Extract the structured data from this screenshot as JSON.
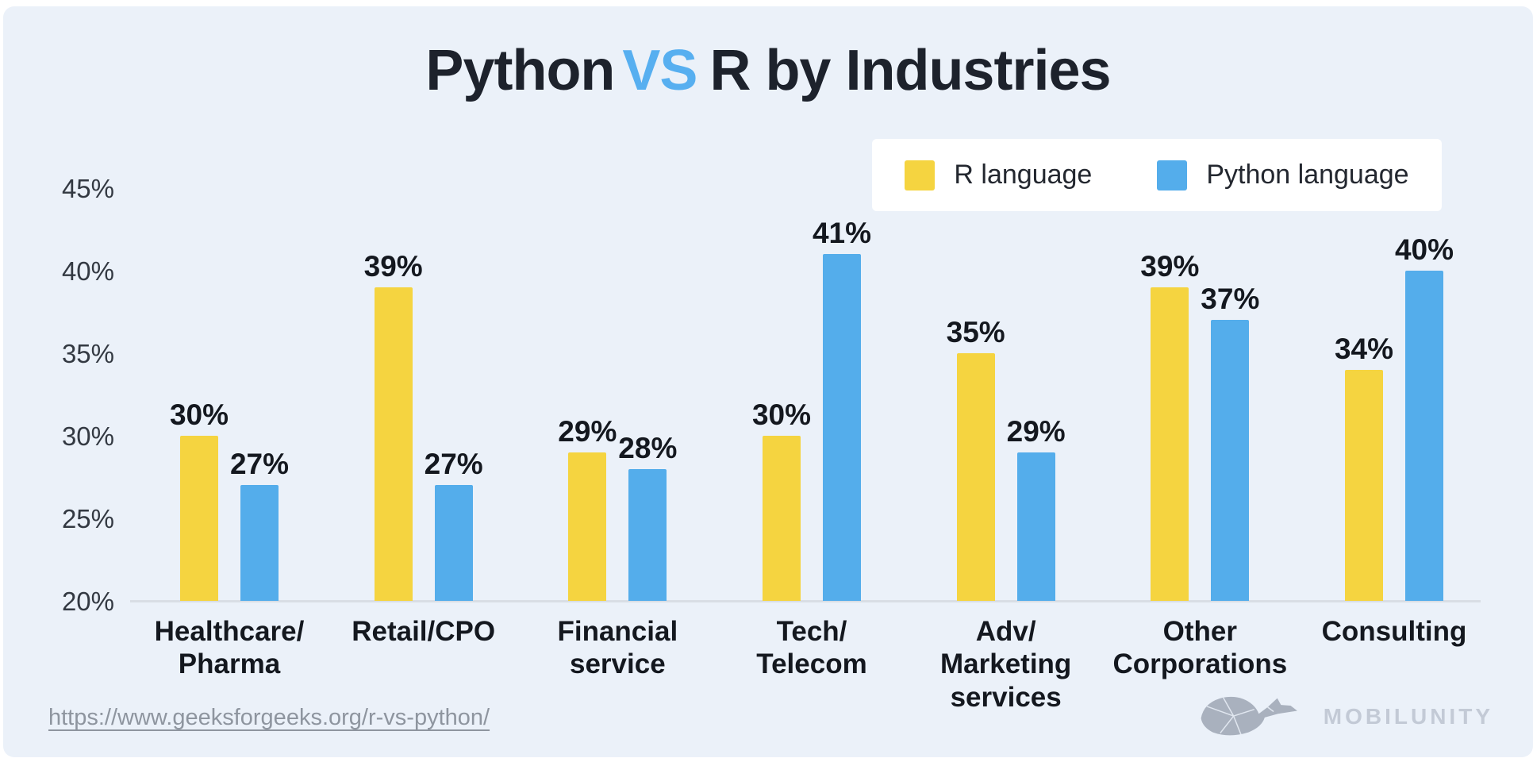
{
  "title": {
    "part1": "Python",
    "vs": "VS",
    "part2": "R by Industries"
  },
  "legend": {
    "r_label": "R language",
    "python_label": "Python language"
  },
  "chart_data": {
    "type": "bar",
    "title": "Python VS R by Industries",
    "categories": [
      [
        "Healthcare/",
        "Pharma"
      ],
      [
        "Retail/CPO"
      ],
      [
        "Financial",
        "service"
      ],
      [
        "Tech/",
        "Telecom"
      ],
      [
        "Adv/",
        "Marketing",
        "services"
      ],
      [
        "Other",
        "Corporations"
      ],
      [
        "Consulting"
      ]
    ],
    "series": [
      {
        "name": "R language",
        "color": "#F5D440",
        "values": [
          30,
          39,
          29,
          30,
          35,
          39,
          34
        ]
      },
      {
        "name": "Python language",
        "color": "#54ADEB",
        "values": [
          27,
          27,
          28,
          41,
          29,
          37,
          40
        ]
      }
    ],
    "value_suffix": "%",
    "ylabel": "",
    "xlabel": "",
    "ylim": [
      20,
      46
    ],
    "y_ticks": [
      45,
      40,
      35,
      30,
      25,
      20
    ],
    "y_tick_suffix": "%",
    "grid": false,
    "legend_position": "top-right"
  },
  "footer": {
    "source_url": "https://www.geeksforgeeks.org/r-vs-python/",
    "brand": "MOBILUNITY"
  },
  "colors": {
    "background": "#EBF1F9",
    "r_bar": "#F5D440",
    "python_bar": "#54ADEB",
    "accent_vs": "#57AFF0",
    "text_dark": "#14181F",
    "axis_text": "#333942",
    "baseline": "#D9DEE5",
    "source_text": "#8E959F",
    "logo_gray": "#A9B1BE"
  }
}
